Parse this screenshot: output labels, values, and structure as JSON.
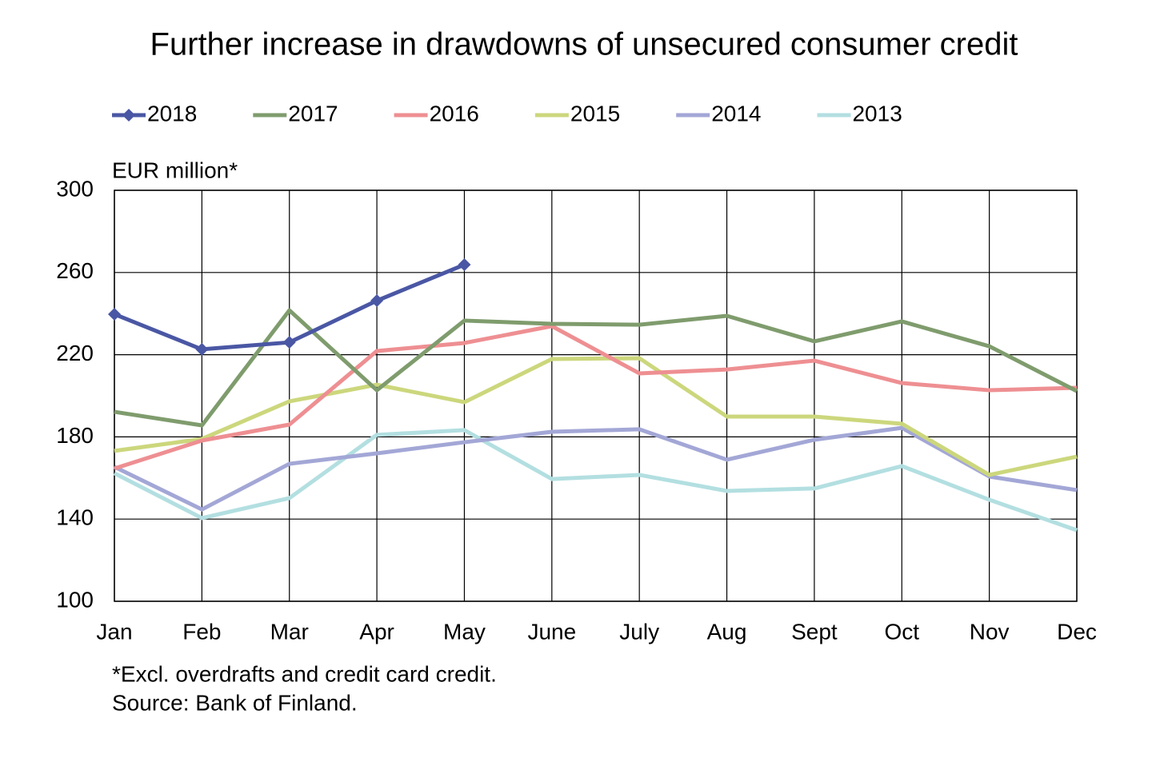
{
  "chart_data": {
    "type": "line",
    "title": "Further increase in drawdowns of unsecured consumer credit",
    "y_label": "EUR million*",
    "notes": [
      "*Excl. overdrafts and credit card credit.",
      "Source: Bank of Finland."
    ],
    "categories": [
      "Jan",
      "Feb",
      "Mar",
      "Apr",
      "May",
      "June",
      "July",
      "Aug",
      "Sept",
      "Oct",
      "Nov",
      "Dec"
    ],
    "ylim": [
      100,
      300
    ],
    "yticks": [
      100,
      140,
      180,
      220,
      260,
      300
    ],
    "grid": true,
    "series": [
      {
        "name": "2018",
        "color": "#4a57a4",
        "marker": "diamond",
        "values": [
          239.7,
          222.6,
          226,
          246.3,
          263.8,
          null,
          null,
          null,
          null,
          null,
          null,
          null
        ]
      },
      {
        "name": "2017",
        "color": "#7f9c6d",
        "values": [
          192.2,
          185.6,
          241.6,
          202.7,
          236.6,
          235,
          234.6,
          238.9,
          226.5,
          236.2,
          224.1,
          202.3
        ]
      },
      {
        "name": "2016",
        "color": "#ee8f92",
        "values": [
          164.6,
          178.2,
          186,
          221.8,
          225.7,
          233.9,
          210.9,
          212.8,
          217.1,
          206.2,
          202.7,
          203.9
        ]
      },
      {
        "name": "2015",
        "color": "#ccd77c",
        "values": [
          173.2,
          179,
          197.3,
          205.4,
          196.9,
          217.9,
          218.3,
          189.9,
          189.9,
          186.4,
          161.5,
          170.4
        ]
      },
      {
        "name": "2014",
        "color": "#a3a7d6",
        "values": [
          165.4,
          144.7,
          166.9,
          172,
          177.4,
          182.5,
          183.7,
          168.9,
          178.6,
          184.4,
          160.7,
          154.1
        ]
      },
      {
        "name": "2013",
        "color": "#b3dfe1",
        "values": [
          162.3,
          140.5,
          150.2,
          181,
          183.3,
          159.5,
          161.5,
          153.7,
          154.9,
          165.8,
          149.4,
          134.6
        ]
      }
    ]
  }
}
